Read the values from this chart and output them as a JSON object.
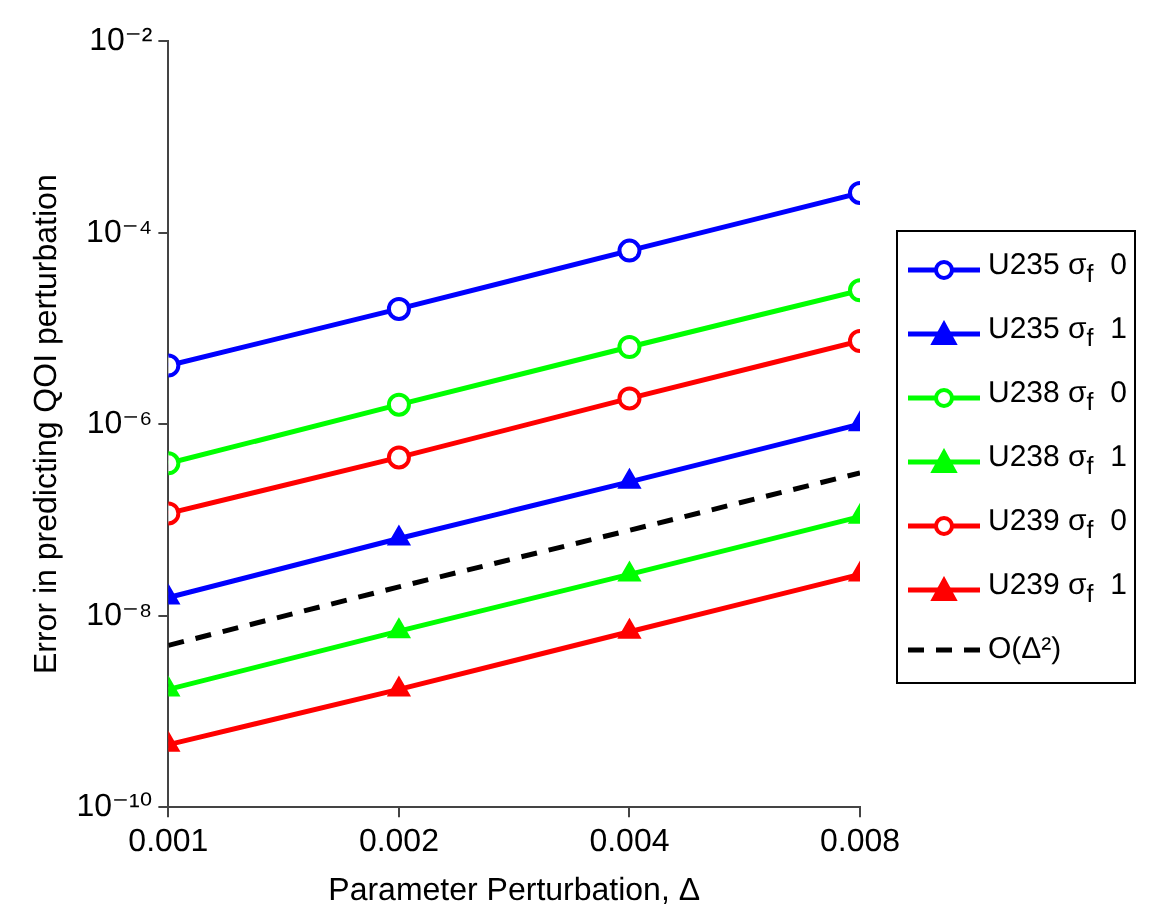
{
  "chart_data": {
    "type": "line",
    "xlabel": "Parameter Perturbation, Δ",
    "ylabel": "Error in predicting QOI perturbation",
    "x": [
      0.001,
      0.002,
      0.004,
      0.008
    ],
    "log": "xy",
    "xlim": [
      0.001,
      0.008
    ],
    "xticks": [
      0.001,
      0.002,
      0.004,
      0.008
    ],
    "ylim": [
      1e-10,
      0.01
    ],
    "yticks": [
      {
        "value": 1e-10,
        "label": "10⁻¹⁰"
      },
      {
        "value": 1e-08,
        "label": "10⁻⁸"
      },
      {
        "value": 1e-06,
        "label": "10⁻⁶"
      },
      {
        "value": 0.0001,
        "label": "10⁻⁴"
      },
      {
        "value": 0.01,
        "label": "10⁻²"
      }
    ],
    "grid": false,
    "legend": "right",
    "line_style": "solid",
    "series": [
      {
        "name": "U235 σ$_{f}$  0",
        "color": "#0000ff",
        "marker": "circle",
        "values": [
          4.1e-06,
          1.6e-05,
          6.5e-05,
          0.00026
        ]
      },
      {
        "name": "U235 σ$_{f}$  1",
        "color": "#0000ff",
        "marker": "triangle",
        "values": [
          1.55e-08,
          6.4e-08,
          2.5e-07,
          1e-06
        ]
      },
      {
        "name": "U238 σ$_{f}$  0",
        "color": "#00ff00",
        "marker": "circle",
        "values": [
          3.9e-07,
          1.6e-06,
          6.4e-06,
          2.5e-05
        ]
      },
      {
        "name": "U238 σ$_{f}$  1",
        "color": "#00ff00",
        "marker": "triangle",
        "values": [
          1.7e-09,
          6.9e-09,
          2.7e-08,
          1.08e-07
        ]
      },
      {
        "name": "U239 σ$_{f}$  0",
        "color": "#ff0000",
        "marker": "circle",
        "values": [
          1.17e-07,
          4.5e-07,
          1.86e-06,
          7.4e-06
        ]
      },
      {
        "name": "U239 σ$_{f}$  1",
        "color": "#ff0000",
        "marker": "triangle",
        "values": [
          4.5e-10,
          1.7e-09,
          6.8e-09,
          2.7e-08
        ]
      },
      {
        "name": "O(Δ²)",
        "color": "#000000",
        "marker": "none",
        "line_style": "dashed",
        "values": [
          4.9e-09,
          2e-08,
          7.8e-08,
          3.1e-07
        ]
      }
    ]
  }
}
